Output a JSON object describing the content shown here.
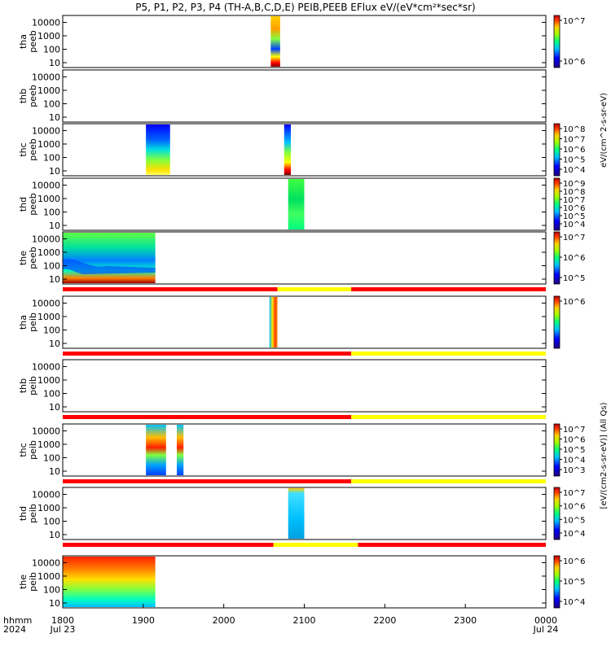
{
  "title": "P5, P1, P2, P3, P4 (TH-A,B,C,D,E) PEIB,PEEB EFlux eV/(eV*cm²*sec*sr)",
  "time_axis": {
    "row_label": "hhmm",
    "year_label": "2024",
    "ticks": [
      "1800",
      "1900",
      "2000",
      "2100",
      "2200",
      "2300",
      "0000"
    ],
    "start_date": "Jul 23",
    "end_date": "Jul 24"
  },
  "colorbar_units": {
    "peeb": "eV/(cm^2-s-sr-eV)",
    "peib": "[eV/(cm2-s-sr-eV)] (All Qs)"
  },
  "colors": {
    "mode_fast": "#ff0000",
    "mode_slow": "#ffff00",
    "no_data": "#ffffff"
  },
  "chart_data": {
    "type": "heatmap",
    "x_range": [
      "18:00",
      "24:00"
    ],
    "y_scale": "log",
    "y_ticks": [
      "10",
      "100",
      "1000",
      "10000"
    ],
    "panels": [
      {
        "name": "tha peeb",
        "label1": "tha",
        "label2": "peeb",
        "colorbar_ticks": [
          "10^7",
          "10^6"
        ],
        "data_intervals": [
          [
            "20:35",
            "20:42"
          ]
        ]
      },
      {
        "name": "thb peeb",
        "label1": "thb",
        "label2": "peeb",
        "colorbar_ticks": [],
        "data_intervals": []
      },
      {
        "name": "thc peeb",
        "label1": "thc",
        "label2": "peeb",
        "colorbar_ticks": [
          "10^8",
          "10^7",
          "10^6",
          "10^5",
          "10^4"
        ],
        "data_intervals": [
          [
            "19:02",
            "19:20"
          ],
          [
            "20:45",
            "20:50"
          ]
        ]
      },
      {
        "name": "thd peeb",
        "label1": "thd",
        "label2": "peeb",
        "colorbar_ticks": [
          "10^9",
          "10^8",
          "10^7",
          "10^6",
          "10^5",
          "10^4"
        ],
        "data_intervals": [
          [
            "20:48",
            "21:00"
          ]
        ]
      },
      {
        "name": "the peeb",
        "label1": "the",
        "label2": "peeb",
        "colorbar_ticks": [
          "10^7",
          "10^6",
          "10^5"
        ],
        "data_intervals": [
          [
            "18:00",
            "19:09"
          ]
        ],
        "mode_bar": [
          [
            "18:00",
            "20:40",
            "fast"
          ],
          [
            "20:40",
            "21:35",
            "slow"
          ],
          [
            "21:35",
            "24:00",
            "fast"
          ]
        ]
      },
      {
        "name": "tha peib",
        "label1": "tha",
        "label2": "peib",
        "colorbar_ticks": [
          "10^6"
        ],
        "data_intervals": [
          [
            "20:34",
            "20:40"
          ]
        ],
        "mode_bar": [
          [
            "18:00",
            "21:35",
            "fast"
          ],
          [
            "21:35",
            "24:00",
            "slow"
          ]
        ]
      },
      {
        "name": "thb peib",
        "label1": "thb",
        "label2": "peib",
        "colorbar_ticks": [],
        "data_intervals": [],
        "mode_bar": [
          [
            "18:00",
            "21:35",
            "fast"
          ],
          [
            "21:35",
            "24:00",
            "slow"
          ]
        ]
      },
      {
        "name": "thc peib",
        "label1": "thc",
        "label2": "peib",
        "colorbar_ticks": [
          "10^7",
          "10^6",
          "10^5",
          "10^4",
          "10^3"
        ],
        "data_intervals": [
          [
            "19:02",
            "19:17"
          ],
          [
            "19:25",
            "19:30"
          ]
        ],
        "mode_bar": [
          [
            "18:00",
            "21:35",
            "fast"
          ],
          [
            "21:35",
            "24:00",
            "slow"
          ]
        ]
      },
      {
        "name": "thd peib",
        "label1": "thd",
        "label2": "peib",
        "colorbar_ticks": [
          "10^7",
          "10^6",
          "10^5",
          "10^4"
        ],
        "data_intervals": [
          [
            "20:48",
            "21:00"
          ]
        ],
        "mode_bar": [
          [
            "18:00",
            "20:37",
            "fast"
          ],
          [
            "20:37",
            "21:40",
            "slow"
          ],
          [
            "21:40",
            "24:00",
            "fast"
          ]
        ]
      },
      {
        "name": "the peib",
        "label1": "the",
        "label2": "peib",
        "colorbar_ticks": [
          "10^6",
          "10^5",
          "10^4"
        ],
        "data_intervals": [
          [
            "18:00",
            "19:09"
          ]
        ]
      }
    ]
  }
}
